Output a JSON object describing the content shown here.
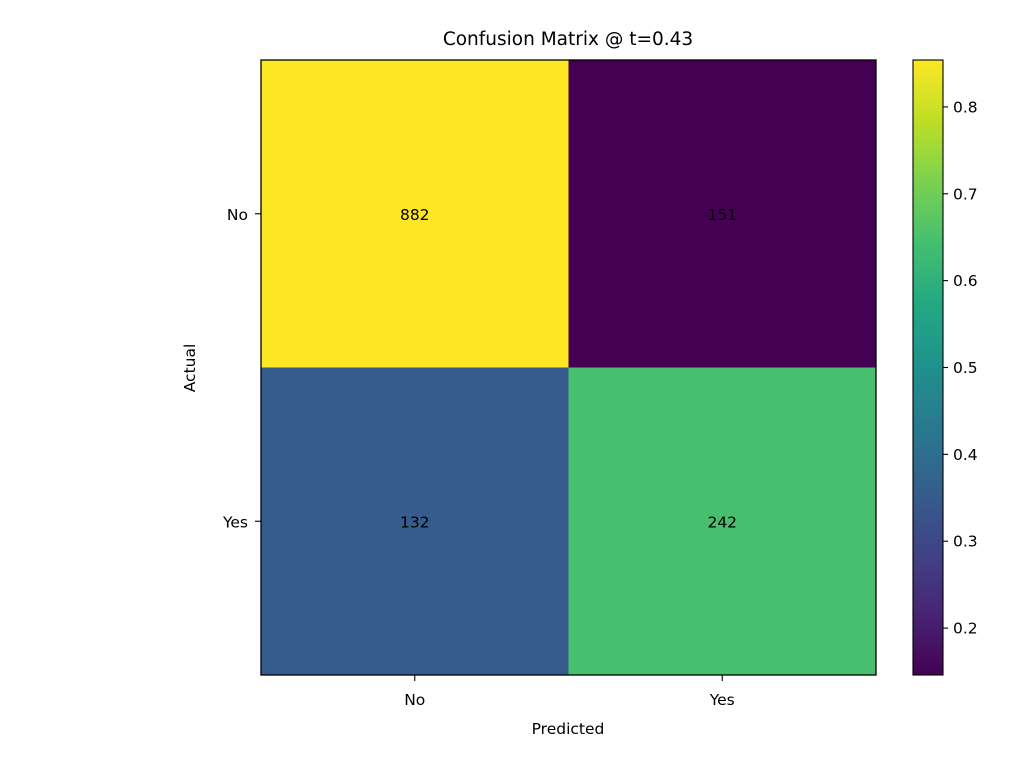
{
  "chart_data": {
    "type": "heatmap",
    "title": "Confusion Matrix @ t=0.43",
    "xlabel": "Predicted",
    "ylabel": "Actual",
    "x_categories": [
      "No",
      "Yes"
    ],
    "y_categories": [
      "No",
      "Yes"
    ],
    "counts": [
      [
        882,
        151
      ],
      [
        132,
        242
      ]
    ],
    "row_normalized": [
      [
        0.854,
        0.146
      ],
      [
        0.353,
        0.647
      ]
    ],
    "colormap": "viridis",
    "colorbar": {
      "range": [
        0.146,
        0.854
      ],
      "ticks": [
        "0.2",
        "0.3",
        "0.4",
        "0.5",
        "0.6",
        "0.7",
        "0.8"
      ]
    },
    "grid": false
  }
}
